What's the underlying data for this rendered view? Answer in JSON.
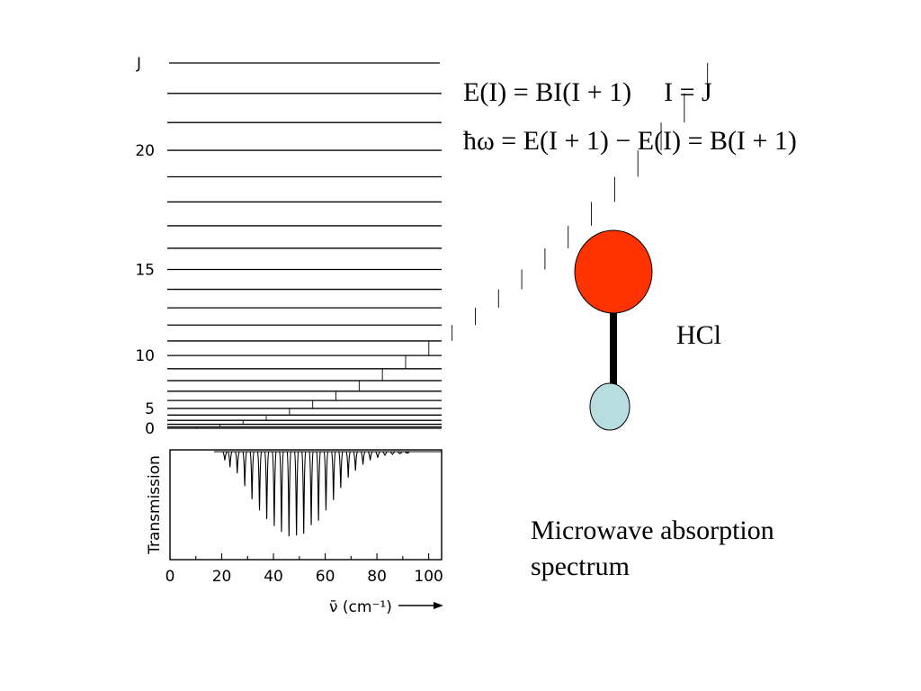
{
  "equations": {
    "energy": "E(I) = BI(I + 1)",
    "identity": "I = J",
    "transition": "ħω = E(I + 1) − E(I) = B(I + 1)"
  },
  "molecule": {
    "label": "HCl",
    "atom_large_color": "#ff3300",
    "atom_small_color": "#b8dde0",
    "bond_color": "#000000"
  },
  "caption": {
    "line1": "Microwave absorption",
    "line2": "spectrum"
  },
  "chart_data": [
    {
      "type": "energy-level-diagram",
      "ylabel": "J",
      "levels_j": [
        0,
        1,
        2,
        3,
        4,
        5,
        6,
        7,
        8,
        9,
        10,
        11,
        12,
        13,
        14,
        15,
        16,
        17,
        18,
        19,
        20,
        21,
        22,
        23
      ],
      "ytick_labels": [
        "0",
        "5",
        "10",
        "15",
        "20"
      ],
      "ytick_values": [
        0,
        5,
        10,
        15,
        20
      ],
      "ylim": [
        0,
        23
      ]
    },
    {
      "type": "line",
      "ylabel": "Transmission",
      "xlabel": "ν̄ (cm⁻¹)",
      "xlim": [
        0,
        105
      ],
      "xtick_labels": [
        "0",
        "20",
        "40",
        "60",
        "80",
        "100"
      ],
      "xtick_values": [
        0,
        20,
        40,
        60,
        80,
        100
      ],
      "absorption_lines_x": [
        21.2,
        23.2,
        26.0,
        28.9,
        31.7,
        34.6,
        37.4,
        40.3,
        43.1,
        46.0,
        48.9,
        51.7,
        54.6,
        57.4,
        60.3,
        63.2,
        66.0,
        68.9,
        71.7,
        74.6,
        77.4,
        80.3,
        83.1,
        86.0,
        88.9,
        91.7
      ],
      "absorption_depth": [
        0.1,
        0.18,
        0.25,
        0.4,
        0.55,
        0.68,
        0.78,
        0.86,
        0.93,
        0.98,
        0.97,
        0.95,
        0.85,
        0.8,
        0.68,
        0.56,
        0.42,
        0.3,
        0.22,
        0.15,
        0.1,
        0.07,
        0.04,
        0.03,
        0.02,
        0.01
      ]
    }
  ]
}
